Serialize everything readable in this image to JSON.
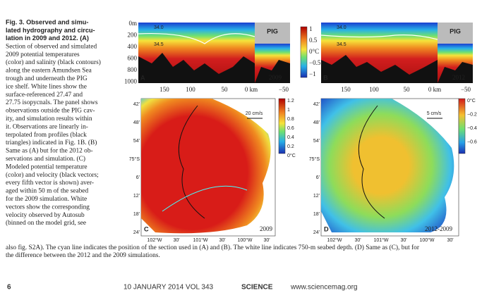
{
  "caption": {
    "title_lines": [
      "Fig. 3. Observed and simu-",
      "lated hydrography and circu-",
      "lation in 2009 and 2012. (A)"
    ],
    "body_lines": [
      "Section of observed and simulated",
      "2009 potential temperatures",
      "(color) and salinity (black contours)",
      "along the eastern Amundsen Sea",
      "trough and underneath the PIG",
      "ice shelf. White lines show the",
      "surface-referenced 27.47 and",
      "27.75 isopycnals. The panel shows",
      "observations outside the PIG cav-",
      "ity, and simulation results within",
      "it. Observations are linearly in-",
      "terpolated from profiles (black",
      "triangles) indicated in Fig. 1B. (B)",
      "Same as (A) but for the 2012 ob-",
      "servations and simulation. (C)",
      "Modeled potential temperature",
      "(color) and velocity (black vectors;",
      "every fifth vector is shown) aver-",
      "aged within 50 m of the seabed",
      "for the 2009 simulation. White",
      "vectors show the corresponding",
      "velocity observed by Autosub",
      "(binned on the model grid, see"
    ],
    "full_lines": [
      "also fig. S2A). The cyan line indicates the position of the section used in (A) and (B). The white line indicates 750-m seabed depth. (D) Same as (C), but for",
      "the difference between the 2012 and the 2009 simulations."
    ]
  },
  "figure": {
    "depth_labels": [
      "0m",
      "200",
      "400",
      "600",
      "800",
      "1000"
    ],
    "distance_labels": [
      "150",
      "100",
      "50",
      "0 km",
      "−50"
    ],
    "section_colorbar_labels": [
      "1",
      "0.5",
      "0°C",
      "−0.5",
      "−1"
    ],
    "salinity_labels": [
      "34.0",
      "34.5"
    ],
    "inset_label": "PIG",
    "panel_a": {
      "letter": "A",
      "year": "2009"
    },
    "panel_b": {
      "letter": "B",
      "year": "2012"
    },
    "lat_labels": [
      "42'",
      "48'",
      "54'",
      "75°S",
      "6'",
      "12'",
      "18'",
      "24'"
    ],
    "lon_labels": [
      "102°W",
      "30'",
      "101°W",
      "30'",
      "100°W",
      "30'"
    ],
    "panel_c": {
      "letter": "C",
      "tag": "2009",
      "scale": "20 cm/s",
      "colorbar_labels": [
        "1.2",
        "1",
        "0.8",
        "0.6",
        "0.4",
        "0.2",
        "0°C"
      ]
    },
    "panel_d": {
      "letter": "D",
      "tag": "2012-2009",
      "scale": "5 cm/s",
      "colorbar_labels": [
        "0°C",
        "−0.2",
        "−0.4",
        "−0.6"
      ]
    }
  },
  "footer": {
    "page": "6",
    "issue": "10 JANUARY 2014   VOL 343",
    "journal": "SCIENCE",
    "url": "www.sciencemag.org"
  }
}
